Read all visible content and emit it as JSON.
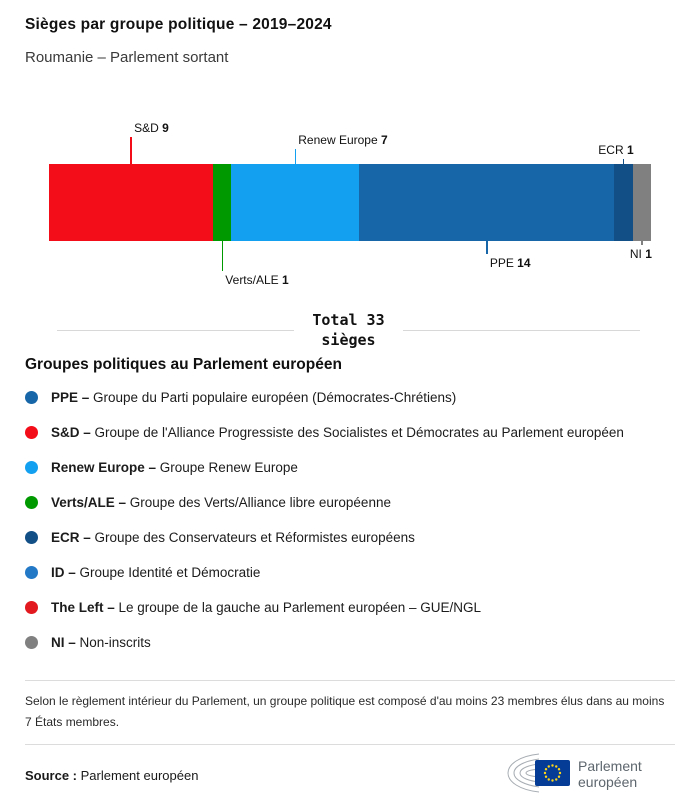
{
  "header": {
    "title": "Sièges par groupe politique – 2019–2024",
    "subtitle": "Roumanie – Parlement sortant"
  },
  "chart_data": {
    "type": "bar",
    "variant": "horizontal-stacked-single-bar",
    "title": "Sièges par groupe politique – 2019–2024",
    "subtitle": "Roumanie – Parlement sortant",
    "total": 33,
    "total_label": {
      "line1": "Total 33",
      "line2": "sièges"
    },
    "categories": [
      "S&D",
      "Verts/ALE",
      "Renew Europe",
      "PPE",
      "ECR",
      "NI"
    ],
    "values": [
      9,
      1,
      7,
      14,
      1,
      1
    ],
    "segments": [
      {
        "name": "S&D",
        "value": 9,
        "color": "#f30d19",
        "callout": {
          "side": "above",
          "line_length": 27,
          "align": "left"
        }
      },
      {
        "name": "Verts/ALE",
        "value": 1,
        "color": "#009900",
        "callout": {
          "side": "below",
          "line_length": 30,
          "align": "left"
        }
      },
      {
        "name": "Renew Europe",
        "value": 7,
        "color": "#14a0f0",
        "callout": {
          "side": "above",
          "line_length": 15,
          "align": "left"
        }
      },
      {
        "name": "PPE",
        "value": 14,
        "color": "#1767a8",
        "callout": {
          "side": "below",
          "line_length": 13,
          "align": "left"
        }
      },
      {
        "name": "ECR",
        "value": 1,
        "color": "#124f87",
        "callout": {
          "side": "above",
          "line_length": 5,
          "align": "right"
        }
      },
      {
        "name": "NI",
        "value": 1,
        "color": "#808080",
        "callout": {
          "side": "below",
          "line_length": 4,
          "align": "right"
        }
      }
    ]
  },
  "legend": {
    "heading": "Groupes politiques au Parlement européen",
    "items": [
      {
        "abbr": "PPE –",
        "desc": "Groupe du Parti populaire européen (Démocrates-Chrétiens)",
        "color": "#1767a8"
      },
      {
        "abbr": "S&D –",
        "desc": "Groupe de l'Alliance Progressiste des Socialistes et Démocrates au Parlement européen",
        "color": "#f30d19"
      },
      {
        "abbr": "Renew Europe –",
        "desc": "Groupe Renew Europe",
        "color": "#14a0f0"
      },
      {
        "abbr": "Verts/ALE –",
        "desc": "Groupe des Verts/Alliance libre européenne",
        "color": "#009900"
      },
      {
        "abbr": "ECR –",
        "desc": "Groupe des Conservateurs et Réformistes européens",
        "color": "#124f87"
      },
      {
        "abbr": "ID –",
        "desc": "Groupe Identité et Démocratie",
        "color": "#2479c7"
      },
      {
        "abbr": "The Left –",
        "desc": "Le groupe de la gauche au Parlement européen – GUE/NGL",
        "color": "#e2191f"
      },
      {
        "abbr": "NI –",
        "desc": "Non-inscrits",
        "color": "#808080"
      }
    ]
  },
  "footnote": "Selon le règlement intérieur du Parlement, un groupe politique est composé d'au moins 23 membres élus dans au moins 7 États membres.",
  "source": {
    "label": "Source :",
    "value": "Parlement européen"
  },
  "logo": {
    "line1": "Parlement",
    "line2": "européen"
  }
}
